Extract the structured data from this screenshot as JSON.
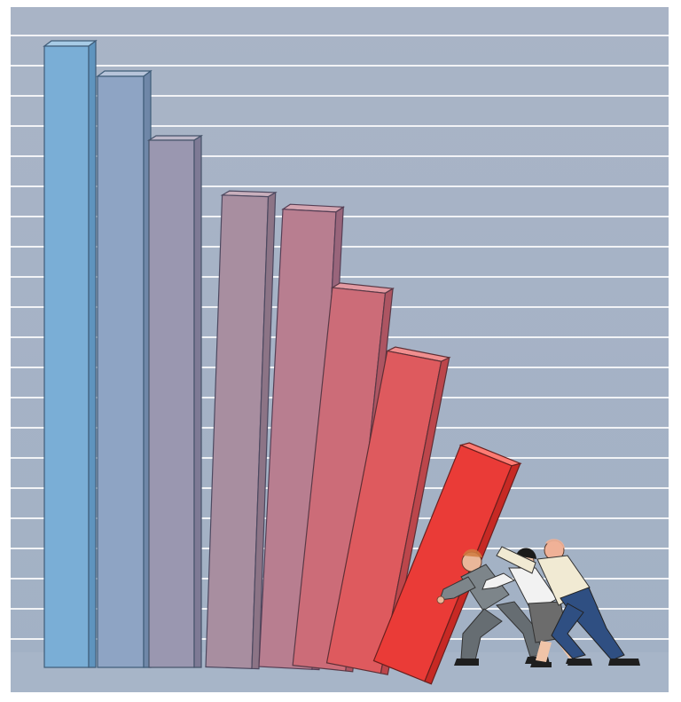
{
  "illustration": {
    "subject": "falling-bar-chart-pushed-by-business-people",
    "background_color": "#a6b3c6",
    "gridline_color": "#ffffff",
    "bars": [
      {
        "name": "bar-1",
        "color": "#7aaed6",
        "tilt_deg": 0
      },
      {
        "name": "bar-2",
        "color": "#8ea4c4",
        "tilt_deg": 0
      },
      {
        "name": "bar-3",
        "color": "#9a97b0",
        "tilt_deg": 0
      },
      {
        "name": "bar-4",
        "color": "#a88ea0",
        "tilt_deg": 2
      },
      {
        "name": "bar-5",
        "color": "#b87e90",
        "tilt_deg": 3
      },
      {
        "name": "bar-6",
        "color": "#cc6c78",
        "tilt_deg": 6
      },
      {
        "name": "bar-7",
        "color": "#de5a5e",
        "tilt_deg": 11
      },
      {
        "name": "bar-8",
        "color": "#ea3b37",
        "tilt_deg": 22
      }
    ],
    "people": [
      {
        "name": "man-grey-suit",
        "shirt_color": "#7d858a",
        "pants_color": "#666d72"
      },
      {
        "name": "woman-grey-skirt",
        "shirt_color": "#f2f2f2",
        "pants_color": "#6c6c6c"
      },
      {
        "name": "man-blue-jeans",
        "shirt_color": "#f1ead3",
        "pants_color": "#2f4f82"
      }
    ]
  }
}
